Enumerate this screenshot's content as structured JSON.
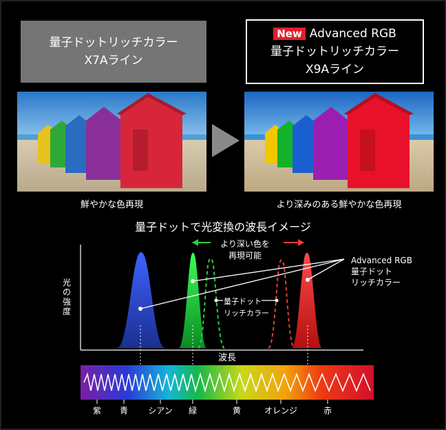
{
  "header_left": {
    "line1": "量子ドットリッチカラー",
    "line2": "X7Aライン"
  },
  "header_right": {
    "badge": "New",
    "line1": "Advanced RGB",
    "line2": "量子ドットリッチカラー",
    "line3": "X9Aライン"
  },
  "captions": {
    "left": "鮮やかな色再現",
    "right": "より深みのある鮮やかな色再現"
  },
  "diagram": {
    "title": "量子ドットで光変換の波長イメージ",
    "ylabel": "光の強度",
    "xlabel": "波長",
    "deeper_line1": "より深い色を",
    "deeper_line2": "再現可能",
    "adv_line1": "Advanced RGB",
    "adv_line2": "量子ドット",
    "adv_line3": "リッチカラー",
    "qd_line1": "量子ドット",
    "qd_line2": "リッチカラー",
    "spectrum_labels": [
      "紫",
      "青",
      "シアン",
      "緑",
      "黄",
      "オレンジ",
      "赤"
    ]
  },
  "colors": {
    "blue_peak": "#2b4fd8",
    "green_peak": "#19c23a",
    "red_peak": "#ff2a2a",
    "accent_red": "#e11e2d",
    "green_arrow": "#2ecc40",
    "red_arrow": "#e8403a",
    "header_gray": "#757575"
  }
}
